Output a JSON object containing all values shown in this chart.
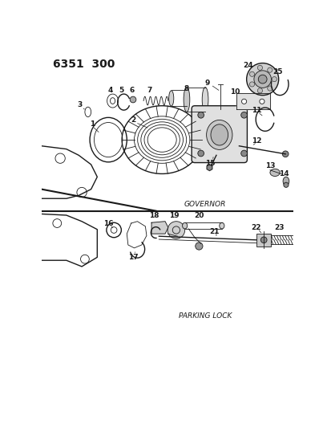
{
  "title": "6351  300",
  "governor_label": "GOVERNOR",
  "parking_label": "PARKING LOCK",
  "bg_color": "#ffffff",
  "line_color": "#1a1a1a",
  "text_color": "#1a1a1a",
  "title_fontsize": 10,
  "label_fontsize": 6.5,
  "part_label_fontsize": 6.5,
  "fig_w": 4.08,
  "fig_h": 5.33,
  "dpi": 100
}
